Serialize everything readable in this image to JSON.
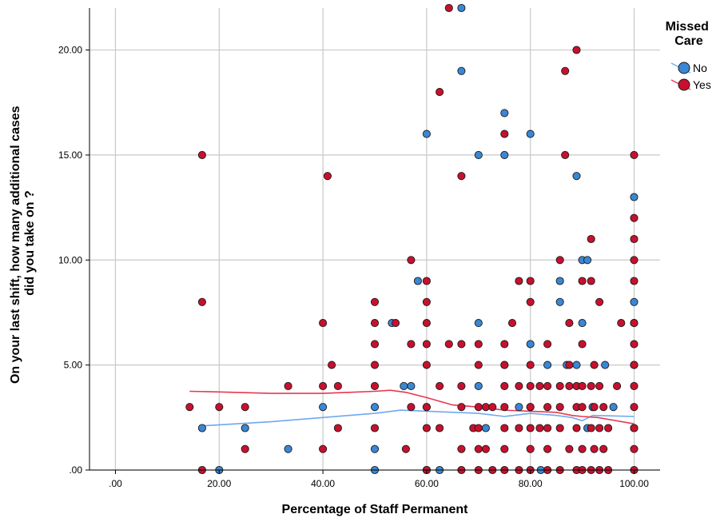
{
  "chart_data": {
    "type": "scatter",
    "xlabel": "Percentage of Staff Permanent",
    "ylabel_lines": [
      "On your last shift, how many additional cases",
      "did you take on ?"
    ],
    "xlim": [
      -5,
      105
    ],
    "ylim": [
      0,
      22
    ],
    "x_ticks": [
      0,
      20,
      40,
      60,
      80,
      100
    ],
    "x_tick_labels": [
      ".00",
      "20.00",
      "40.00",
      "60.00",
      "80.00",
      "100.00"
    ],
    "y_ticks": [
      0,
      5,
      10,
      15,
      20
    ],
    "y_tick_labels": [
      ".00",
      "5.00",
      "10.00",
      "15.00",
      "20.00"
    ],
    "grid": true,
    "legend": {
      "title_lines": [
        "Missed",
        "Care"
      ],
      "position": "top-right"
    },
    "series": [
      {
        "name": "No",
        "color": "#3a87d6",
        "points": [
          [
            16.7,
            2
          ],
          [
            20,
            0
          ],
          [
            25,
            2
          ],
          [
            33.3,
            1
          ],
          [
            40,
            3
          ],
          [
            50,
            0
          ],
          [
            50,
            1
          ],
          [
            50,
            3
          ],
          [
            53.3,
            7
          ],
          [
            55.6,
            4
          ],
          [
            57,
            4
          ],
          [
            58.3,
            9
          ],
          [
            60,
            16
          ],
          [
            60,
            3
          ],
          [
            60,
            0
          ],
          [
            62.5,
            0
          ],
          [
            66.7,
            22
          ],
          [
            66.7,
            19
          ],
          [
            70,
            15
          ],
          [
            70,
            7
          ],
          [
            70,
            4
          ],
          [
            71.4,
            2
          ],
          [
            75,
            17
          ],
          [
            75,
            15
          ],
          [
            75,
            5
          ],
          [
            77.8,
            3
          ],
          [
            80,
            16
          ],
          [
            80,
            6
          ],
          [
            80,
            3
          ],
          [
            82,
            0
          ],
          [
            83.3,
            5
          ],
          [
            85.7,
            9
          ],
          [
            85.7,
            8
          ],
          [
            87,
            5
          ],
          [
            88.9,
            14
          ],
          [
            88.9,
            5
          ],
          [
            90,
            10
          ],
          [
            90,
            7
          ],
          [
            91,
            10
          ],
          [
            91,
            2
          ],
          [
            92,
            3
          ],
          [
            94.4,
            5
          ],
          [
            96,
            3
          ],
          [
            100,
            13
          ],
          [
            100,
            8
          ],
          [
            100,
            7
          ],
          [
            100,
            5
          ],
          [
            100,
            2
          ]
        ],
        "trend": [
          [
            16.7,
            2.1
          ],
          [
            30,
            2.3
          ],
          [
            40,
            2.5
          ],
          [
            50,
            2.7
          ],
          [
            55,
            2.85
          ],
          [
            60,
            2.8
          ],
          [
            70,
            2.7
          ],
          [
            75,
            2.55
          ],
          [
            80,
            2.7
          ],
          [
            85,
            2.6
          ],
          [
            88,
            2.5
          ],
          [
            90,
            2.35
          ],
          [
            92,
            2.6
          ],
          [
            100,
            2.55
          ]
        ]
      },
      {
        "name": "Yes",
        "color": "#c8102e",
        "points": [
          [
            14.3,
            3
          ],
          [
            16.7,
            15
          ],
          [
            16.7,
            8
          ],
          [
            16.7,
            0
          ],
          [
            20,
            3
          ],
          [
            25,
            3
          ],
          [
            25,
            1
          ],
          [
            33.3,
            4
          ],
          [
            40,
            7
          ],
          [
            40,
            4
          ],
          [
            40,
            1
          ],
          [
            40.9,
            14
          ],
          [
            41.7,
            5
          ],
          [
            42.9,
            4
          ],
          [
            42.9,
            2
          ],
          [
            50,
            8
          ],
          [
            50,
            7
          ],
          [
            50,
            6
          ],
          [
            50,
            5
          ],
          [
            50,
            4
          ],
          [
            50,
            2
          ],
          [
            54,
            7
          ],
          [
            56,
            1
          ],
          [
            57,
            10
          ],
          [
            57,
            6
          ],
          [
            57,
            3
          ],
          [
            60,
            9
          ],
          [
            60,
            8
          ],
          [
            60,
            7
          ],
          [
            60,
            6
          ],
          [
            60,
            5
          ],
          [
            60,
            3
          ],
          [
            60,
            2
          ],
          [
            60,
            0
          ],
          [
            62.5,
            18
          ],
          [
            62.5,
            4
          ],
          [
            62.5,
            2
          ],
          [
            64.3,
            22
          ],
          [
            64.3,
            6
          ],
          [
            66.7,
            14
          ],
          [
            66.7,
            6
          ],
          [
            66.7,
            4
          ],
          [
            66.7,
            3
          ],
          [
            66.7,
            1
          ],
          [
            66.7,
            0
          ],
          [
            69,
            2
          ],
          [
            70,
            6
          ],
          [
            70,
            5
          ],
          [
            70,
            3
          ],
          [
            70,
            2
          ],
          [
            70,
            1
          ],
          [
            70,
            0
          ],
          [
            71.4,
            3
          ],
          [
            71.4,
            1
          ],
          [
            72.7,
            3
          ],
          [
            72.7,
            0
          ],
          [
            75,
            16
          ],
          [
            75,
            6
          ],
          [
            75,
            5
          ],
          [
            75,
            4
          ],
          [
            75,
            3
          ],
          [
            75,
            2
          ],
          [
            75,
            1
          ],
          [
            75,
            0
          ],
          [
            76.5,
            7
          ],
          [
            77.8,
            9
          ],
          [
            77.8,
            4
          ],
          [
            77.8,
            2
          ],
          [
            77.8,
            0
          ],
          [
            80,
            9
          ],
          [
            80,
            8
          ],
          [
            80,
            5
          ],
          [
            80,
            4
          ],
          [
            80,
            3
          ],
          [
            80,
            2
          ],
          [
            80,
            1
          ],
          [
            80,
            0
          ],
          [
            81.8,
            4
          ],
          [
            81.8,
            2
          ],
          [
            83.3,
            6
          ],
          [
            83.3,
            4
          ],
          [
            83.3,
            3
          ],
          [
            83.3,
            2
          ],
          [
            83.3,
            1
          ],
          [
            83.3,
            0
          ],
          [
            85.7,
            10
          ],
          [
            85.7,
            4
          ],
          [
            85.7,
            3
          ],
          [
            85.7,
            2
          ],
          [
            85.7,
            0
          ],
          [
            86.7,
            19
          ],
          [
            86.7,
            15
          ],
          [
            87.5,
            7
          ],
          [
            87.5,
            5
          ],
          [
            87.5,
            4
          ],
          [
            87.5,
            1
          ],
          [
            88.9,
            20
          ],
          [
            88.9,
            4
          ],
          [
            88.9,
            3
          ],
          [
            88.9,
            2
          ],
          [
            88.9,
            0
          ],
          [
            90,
            9
          ],
          [
            90,
            6
          ],
          [
            90,
            4
          ],
          [
            90,
            3
          ],
          [
            90,
            1
          ],
          [
            90,
            0
          ],
          [
            91.7,
            11
          ],
          [
            91.7,
            9
          ],
          [
            91.7,
            4
          ],
          [
            91.7,
            2
          ],
          [
            91.7,
            0
          ],
          [
            92.3,
            5
          ],
          [
            92.3,
            3
          ],
          [
            92.3,
            1
          ],
          [
            93.3,
            8
          ],
          [
            93.3,
            4
          ],
          [
            93.3,
            2
          ],
          [
            93.3,
            0
          ],
          [
            94.1,
            3
          ],
          [
            94.1,
            1
          ],
          [
            95,
            2
          ],
          [
            95,
            0
          ],
          [
            96.7,
            4
          ],
          [
            97.5,
            7
          ],
          [
            100,
            15
          ],
          [
            100,
            12
          ],
          [
            100,
            11
          ],
          [
            100,
            10
          ],
          [
            100,
            9
          ],
          [
            100,
            7
          ],
          [
            100,
            6
          ],
          [
            100,
            5
          ],
          [
            100,
            4
          ],
          [
            100,
            3
          ],
          [
            100,
            2
          ],
          [
            100,
            1
          ],
          [
            100,
            0
          ]
        ],
        "trend": [
          [
            14.3,
            3.75
          ],
          [
            20,
            3.72
          ],
          [
            30,
            3.65
          ],
          [
            40,
            3.65
          ],
          [
            45,
            3.7
          ],
          [
            50,
            3.75
          ],
          [
            53,
            3.8
          ],
          [
            56,
            3.7
          ],
          [
            60,
            3.45
          ],
          [
            65,
            3.1
          ],
          [
            70,
            3.0
          ],
          [
            75,
            2.85
          ],
          [
            80,
            2.8
          ],
          [
            85,
            2.75
          ],
          [
            88,
            2.6
          ],
          [
            90,
            2.55
          ],
          [
            93,
            2.5
          ],
          [
            100,
            2.2
          ]
        ]
      }
    ]
  }
}
